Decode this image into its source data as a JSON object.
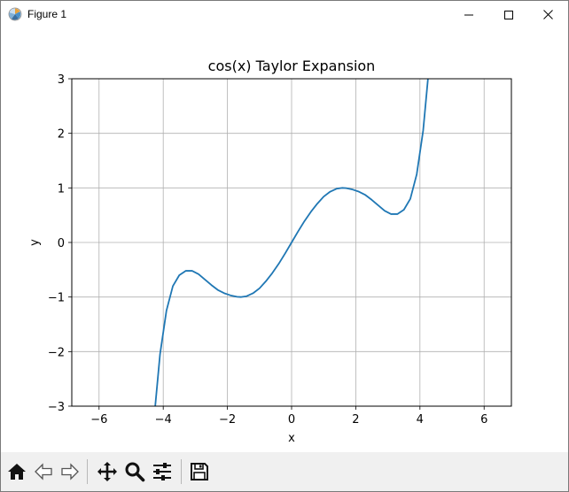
{
  "window": {
    "title": "Figure 1",
    "icon": "matplotlib-logo-icon",
    "controls": [
      "minimize-icon",
      "maximize-icon",
      "close-icon"
    ]
  },
  "toolbar": {
    "items": [
      {
        "name": "home-button",
        "icon": "home-icon"
      },
      {
        "name": "back-button",
        "icon": "arrow-left-icon"
      },
      {
        "name": "forward-button",
        "icon": "arrow-right-icon"
      },
      {
        "name": "pan-button",
        "icon": "move-icon"
      },
      {
        "name": "zoom-button",
        "icon": "magnifier-icon"
      },
      {
        "name": "configure-subplots-button",
        "icon": "sliders-icon"
      },
      {
        "name": "save-button",
        "icon": "floppy-disk-icon"
      }
    ]
  },
  "chart_data": {
    "type": "line",
    "title": "cos(x) Taylor Expansion",
    "xlabel": "x",
    "ylabel": "y",
    "xlim": [
      -6.85,
      6.85
    ],
    "ylim": [
      -3,
      3
    ],
    "xticks": [
      -6,
      -4,
      -2,
      0,
      2,
      4,
      6
    ],
    "xtick_labels": [
      "−6",
      "−4",
      "−2",
      "0",
      "2",
      "4",
      "6"
    ],
    "yticks": [
      -3,
      -2,
      -1,
      0,
      1,
      2,
      3
    ],
    "ytick_labels": [
      "−3",
      "−2",
      "−1",
      "0",
      "1",
      "2",
      "3"
    ],
    "grid": true,
    "line_color": "#1f77b4",
    "series": [
      {
        "x": [
          -4.25,
          -4.1,
          -3.9,
          -3.7,
          -3.5,
          -3.3,
          -3.1,
          -2.9,
          -2.7,
          -2.5,
          -2.3,
          -2.1,
          -1.9,
          -1.7,
          -1.571,
          -1.4,
          -1.2,
          -1.0,
          -0.8,
          -0.6,
          -0.4,
          -0.2,
          0.0,
          0.2,
          0.4,
          0.6,
          0.8,
          1.0,
          1.2,
          1.4,
          1.571,
          1.7,
          1.9,
          2.1,
          2.3,
          2.5,
          2.7,
          2.9,
          3.1,
          3.3,
          3.5,
          3.7,
          3.9,
          4.1,
          4.25
        ],
        "values": [
          -3.0,
          -2.05,
          -1.25,
          -0.8,
          -0.6,
          -0.52,
          -0.52,
          -0.58,
          -0.68,
          -0.78,
          -0.87,
          -0.93,
          -0.97,
          -0.995,
          -1.0,
          -0.985,
          -0.93,
          -0.84,
          -0.71,
          -0.56,
          -0.39,
          -0.2,
          0.0,
          0.2,
          0.39,
          0.56,
          0.71,
          0.84,
          0.93,
          0.985,
          1.0,
          0.995,
          0.97,
          0.93,
          0.87,
          0.78,
          0.68,
          0.58,
          0.52,
          0.52,
          0.6,
          0.8,
          1.25,
          2.05,
          3.0
        ]
      }
    ]
  }
}
